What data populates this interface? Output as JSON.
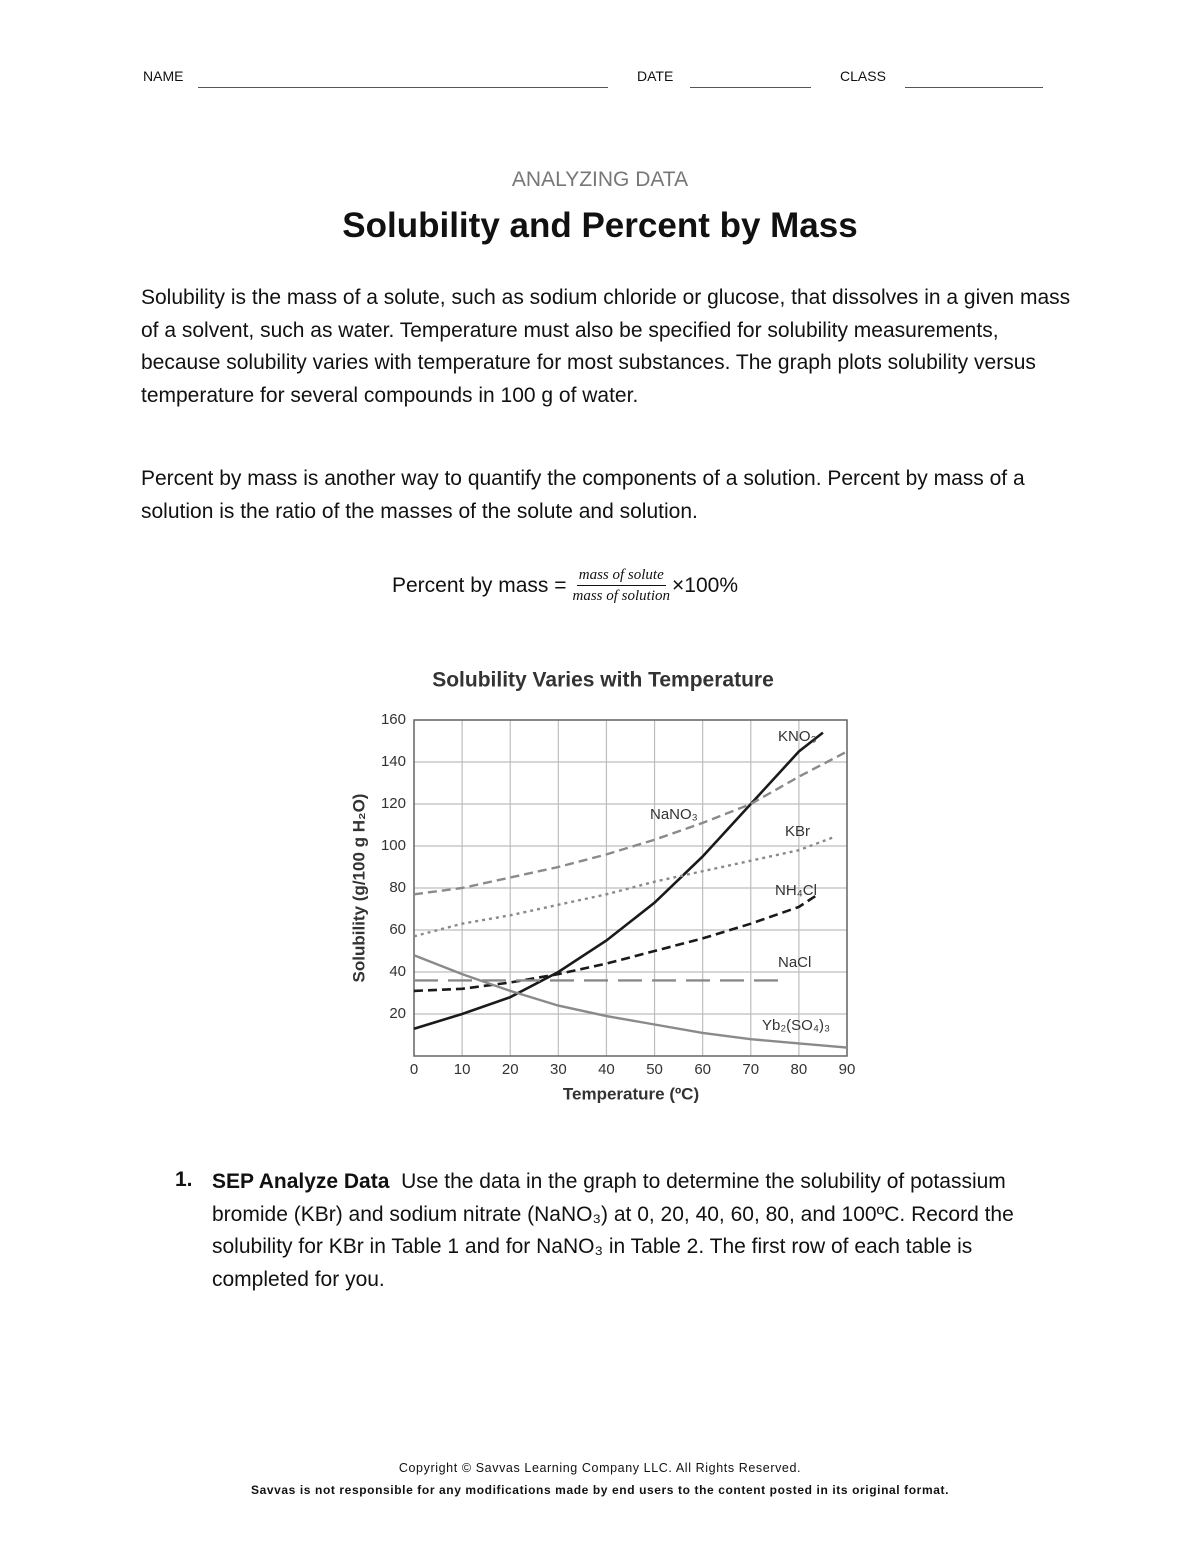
{
  "header": {
    "name": "NAME",
    "date": "DATE",
    "class": "CLASS"
  },
  "kicker": "ANALYZING DATA",
  "title": "Solubility and Percent by Mass",
  "paragraphs": [
    "Solubility is the mass of a solute, such as sodium chloride or glucose, that dissolves in a given mass of a solvent, such as water. Temperature must also be specified for solubility measurements, because solubility varies with temperature for most substances. The graph plots solubility versus temperature for several compounds in 100 g of water.",
    "Percent by mass is another way to quantify the components of a solution. Percent by mass of a solution is the ratio of the masses of the solute and solution."
  ],
  "formula": {
    "lhs": "Percent by mass =",
    "numerator": "mass of solute",
    "denominator": "mass of solution",
    "factor": "×100%"
  },
  "chart_data": {
    "type": "line",
    "title": "Solubility Varies with Temperature",
    "x_label": "Temperature (ºC)",
    "y_label": "Solubility (g/100 g H₂O)",
    "xlim": [
      0,
      90
    ],
    "ylim": [
      0,
      160
    ],
    "xticks": [
      0,
      10,
      20,
      30,
      40,
      50,
      60,
      70,
      80,
      90
    ],
    "yticks": [
      20,
      40,
      60,
      80,
      100,
      120,
      140,
      160
    ],
    "grid": true,
    "series": [
      {
        "name": "KNO₃",
        "color": "#1a1a1a",
        "dash": "solid",
        "x": [
          0,
          10,
          20,
          30,
          40,
          50,
          60,
          70,
          80,
          85
        ],
        "values": [
          13,
          20,
          28,
          40,
          55,
          73,
          95,
          120,
          145,
          154
        ]
      },
      {
        "name": "NaNO₃",
        "color": "#8a8a8a",
        "dash": "dashed",
        "x": [
          0,
          10,
          20,
          30,
          40,
          50,
          60,
          70,
          80,
          90
        ],
        "values": [
          77,
          80,
          85,
          90,
          96,
          103,
          111,
          120,
          133,
          145
        ]
      },
      {
        "name": "KBr",
        "color": "#8a8a8a",
        "dash": "dotted",
        "x": [
          0,
          10,
          20,
          30,
          40,
          50,
          60,
          70,
          80,
          87
        ],
        "values": [
          57,
          63,
          67,
          72,
          77,
          83,
          88,
          93,
          98,
          104
        ]
      },
      {
        "name": "NH₄Cl",
        "color": "#1a1a1a",
        "dash": "dashed",
        "x": [
          0,
          10,
          20,
          30,
          40,
          50,
          60,
          70,
          80,
          84
        ],
        "values": [
          31,
          32,
          35,
          39,
          44,
          50,
          56,
          63,
          71,
          77
        ]
      },
      {
        "name": "NaCl",
        "color": "#8a8a8a",
        "dash": "long-dash",
        "x": [
          0,
          77
        ],
        "values": [
          36,
          36
        ]
      },
      {
        "name": "Yb₂(SO₄)₃",
        "color": "#8a8a8a",
        "dash": "solid",
        "x": [
          0,
          10,
          20,
          30,
          40,
          50,
          60,
          70,
          80,
          90
        ],
        "values": [
          48,
          39,
          31,
          24,
          19,
          15,
          11,
          8,
          6,
          4
        ]
      }
    ]
  },
  "questions": [
    {
      "number": "1.",
      "label": "SEP Analyze Data",
      "text": "Use the data in the graph  to determine the solubility of potassium bromide (KBr) and sodium nitrate (NaNO₃) at 0, 20, 40, 60, 80, and 100ºC. Record the solubility for KBr in Table 1 and for NaNO₃ in Table 2. The first row of each table is completed for you."
    }
  ],
  "footer": [
    "Copyright © Savvas Learning Company LLC. All Rights Reserved.",
    "Savvas is not responsible for any modifications made by end users to the content posted in its original format."
  ]
}
